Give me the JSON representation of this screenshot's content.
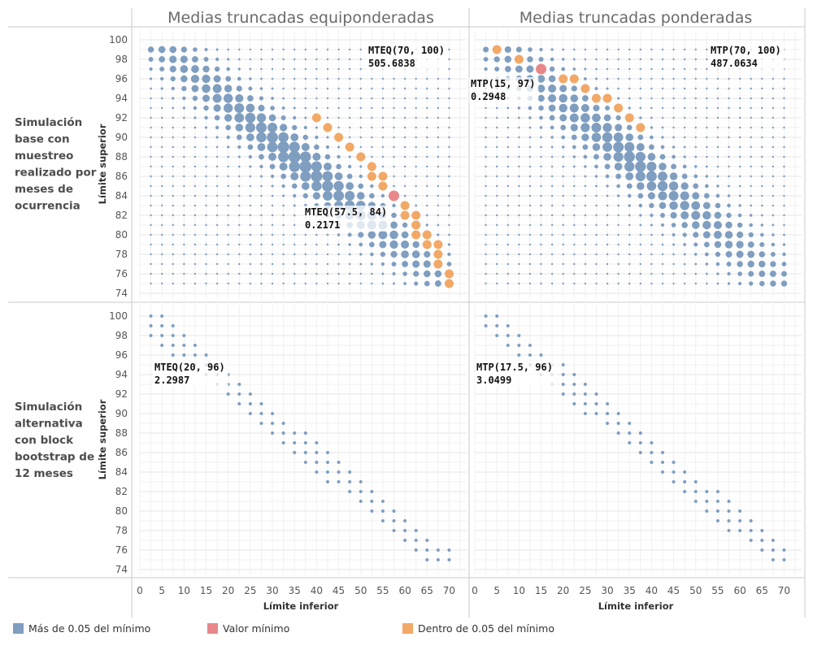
{
  "chart_data": {
    "type": "scatter",
    "columns": [
      "Medias truncadas equiponderadas",
      "Medias truncadas ponderadas"
    ],
    "rows": [
      "Simulación base con muestreo realizado por meses de ocurrencia",
      "Simulación alternativa con block bootstrap de 12 meses"
    ],
    "xlabel": "Límite inferior",
    "ylabel": "Límite superior",
    "x_ticks": [
      0,
      5,
      10,
      15,
      20,
      25,
      30,
      35,
      40,
      45,
      50,
      55,
      60,
      65,
      70
    ],
    "y_ticks": [
      74,
      76,
      78,
      80,
      82,
      84,
      86,
      88,
      90,
      92,
      94,
      96,
      98,
      100
    ],
    "xlim": [
      0,
      72
    ],
    "ylim": [
      73,
      100.5
    ],
    "legend": [
      {
        "label": "Más de 0.05 del mínimo",
        "color": "#7f9ec0"
      },
      {
        "label": "Valor mínimo",
        "color": "#e8878a"
      },
      {
        "label": "Dentro de 0.05 del mínimo",
        "color": "#f2a866"
      }
    ],
    "colors": {
      "blue": "#7f9ec0",
      "red": "#e8878a",
      "orange": "#f2a866"
    },
    "annotations": [
      {
        "panel": "top-left",
        "label": "MTEQ(70, 100)",
        "value": "505.6838",
        "x": 70,
        "y": 100
      },
      {
        "panel": "top-left",
        "label": "MTEQ(57.5, 84)",
        "value": "0.2171",
        "x": 57.5,
        "y": 84
      },
      {
        "panel": "top-right",
        "label": "MTP(70, 100)",
        "value": "487.0634",
        "x": 70,
        "y": 100
      },
      {
        "panel": "top-right",
        "label": "MTP(15, 97)",
        "value": "0.2948",
        "x": 15,
        "y": 97
      },
      {
        "panel": "bottom-left",
        "label": "MTEQ(20, 96)",
        "value": "2.2987",
        "x": 20,
        "y": 96
      },
      {
        "panel": "bottom-right",
        "label": "MTP(17.5, 96)",
        "value": "3.0499",
        "x": 17.5,
        "y": 96
      }
    ],
    "panels": [
      {
        "id": "top-left",
        "pattern": "full",
        "center": {
          "a": 0.6,
          "b": 36.8
        },
        "spread": 2.0,
        "size_max": 7.5,
        "minimum": [
          57.5,
          84
        ],
        "near_minimum": [
          [
            40,
            92
          ],
          [
            42.5,
            91
          ],
          [
            45,
            90
          ],
          [
            47.5,
            89
          ],
          [
            50,
            88
          ],
          [
            52.5,
            87
          ],
          [
            52.5,
            86
          ],
          [
            55,
            86
          ],
          [
            55,
            85
          ],
          [
            60,
            83
          ],
          [
            62.5,
            82
          ],
          [
            60,
            82
          ],
          [
            62.5,
            81
          ],
          [
            62.5,
            80
          ],
          [
            65,
            80
          ],
          [
            65,
            79
          ],
          [
            67.5,
            79
          ],
          [
            67.5,
            78
          ],
          [
            67.5,
            77
          ],
          [
            70,
            76
          ],
          [
            70,
            75
          ]
        ]
      },
      {
        "id": "top-right",
        "pattern": "full",
        "center": {
          "a": 0.5,
          "b": 38
        },
        "spread": 2.2,
        "size_max": 6.8,
        "minimum": [
          15,
          97
        ],
        "near_minimum": [
          [
            5,
            99
          ],
          [
            10,
            98
          ],
          [
            20,
            96
          ],
          [
            22.5,
            96
          ],
          [
            25,
            95
          ],
          [
            27.5,
            94
          ],
          [
            30,
            94
          ],
          [
            32.5,
            93
          ],
          [
            35,
            92
          ],
          [
            37.5,
            91
          ]
        ]
      },
      {
        "id": "bottom-left",
        "pattern": "sparse",
        "minimum": [
          20,
          96
        ],
        "near_minimum": [
          [
            22.5,
            96
          ],
          [
            25,
            95
          ],
          [
            22.5,
            95
          ],
          [
            30,
            94
          ],
          [
            32.5,
            93
          ],
          [
            35,
            93
          ],
          [
            37.5,
            92
          ],
          [
            40,
            91
          ]
        ]
      },
      {
        "id": "bottom-right",
        "pattern": "sparse",
        "minimum": [
          17.5,
          96
        ],
        "near_minimum": []
      }
    ]
  }
}
